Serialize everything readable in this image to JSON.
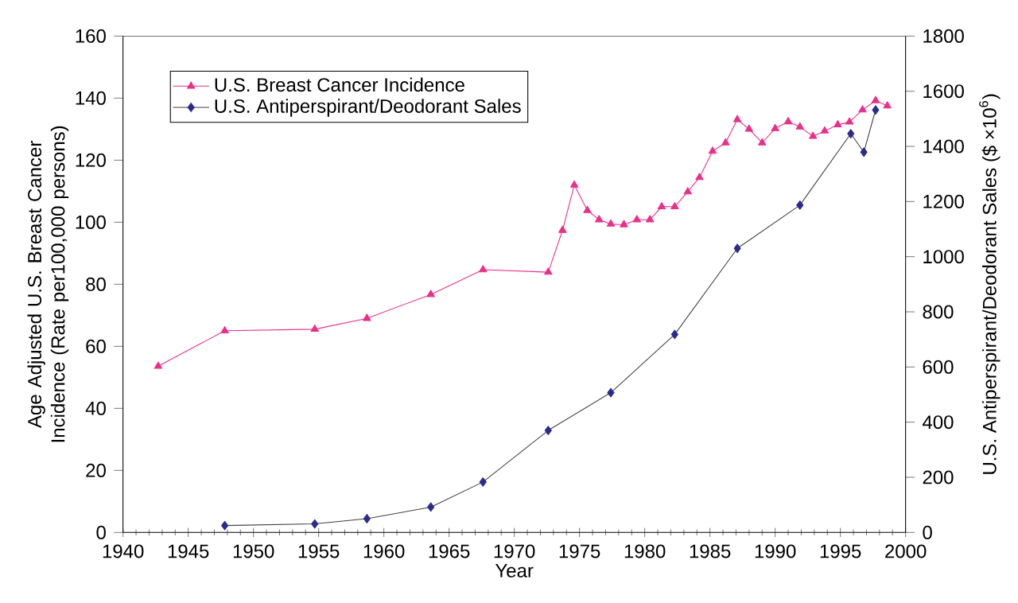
{
  "chart_data": {
    "type": "line",
    "xlabel": "Year",
    "ylabel": "Age Adjusted U.S. Breast Cancer Incidence (Rate per100,000 persons)",
    "y2label": "U.S. Antiperspirant/Deodorant Sales ($ ×10$^{6}$)",
    "xlim": [
      1940,
      2000
    ],
    "xticks": [
      1940,
      1945,
      1950,
      1955,
      1960,
      1965,
      1970,
      1975,
      1980,
      1985,
      1990,
      1995,
      2000
    ],
    "ylim": [
      0,
      160
    ],
    "yticks": [
      0,
      20,
      40,
      60,
      80,
      100,
      120,
      140,
      160
    ],
    "y2lim": [
      0,
      1800
    ],
    "y2ticks": [
      0,
      200,
      400,
      600,
      800,
      1000,
      1200,
      1400,
      1600,
      1800
    ],
    "legend": "top left",
    "series": [
      {
        "name": "U.S. Breast Cancer Incidence",
        "color": "#e8308a",
        "marker": "triangle",
        "axis": "y",
        "x": [
          1942.7,
          1947.8,
          1954.7,
          1958.7,
          1963.6,
          1967.6,
          1972.6,
          1973.7,
          1974.6,
          1975.6,
          1976.5,
          1977.4,
          1978.4,
          1979.4,
          1980.4,
          1981.3,
          1982.3,
          1983.3,
          1984.2,
          1985.2,
          1986.2,
          1987.1,
          1988.0,
          1989.0,
          1990.0,
          1991.0,
          1991.9,
          1992.9,
          1993.8,
          1994.8,
          1995.7,
          1996.7,
          1997.7,
          1998.6
        ],
        "values": [
          53.6,
          65,
          65.5,
          69,
          76.7,
          84.7,
          83.9,
          97.4,
          112,
          103.8,
          100.8,
          99.4,
          99.2,
          100.8,
          100.8,
          105,
          105,
          109.8,
          114.4,
          122.9,
          125.6,
          133.1,
          130,
          125.6,
          130.2,
          132.4,
          130.7,
          127.7,
          129.4,
          131.4,
          132.3,
          136.2,
          139.2,
          137.5
        ]
      },
      {
        "name": "U.S. Antiperspirant/Deodorant Sales",
        "color": "#2b2b8c",
        "marker": "diamond",
        "axis": "y2",
        "x": [
          1947.8,
          1954.7,
          1958.7,
          1963.6,
          1967.6,
          1972.6,
          1977.4,
          1982.3,
          1987.1,
          1991.9,
          1995.8,
          1996.8,
          1997.7
        ],
        "values": [
          25,
          31,
          50,
          92,
          183,
          370,
          507,
          718,
          1030,
          1187,
          1446,
          1379,
          1532
        ]
      }
    ]
  }
}
